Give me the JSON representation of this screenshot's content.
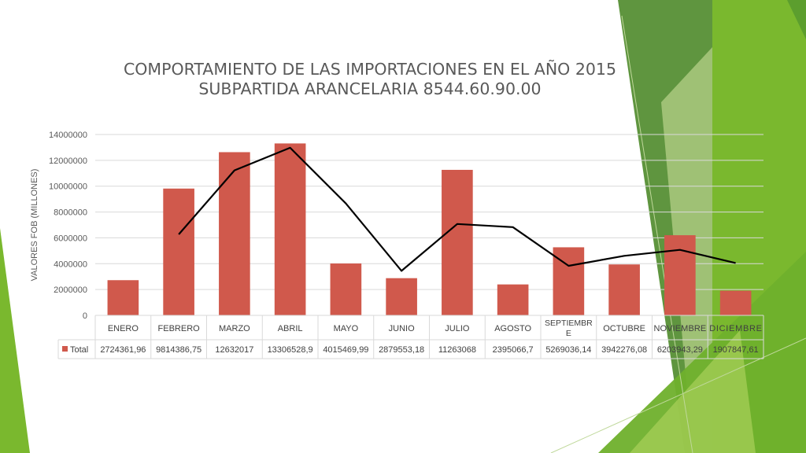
{
  "theme": {
    "bar_color": "#D0594C",
    "line_color": "#000000",
    "accent_green_dark": "#4E8A2A",
    "accent_green": "#7AB82E",
    "accent_green_light": "#C9E09A"
  },
  "chart_data": {
    "type": "bar",
    "title_lines": [
      "COMPORTAMIENTO DE LAS IMPORTACIONES EN EL AÑO 2015",
      "SUBPARTIDA ARANCELARIA 8544.60.90.00"
    ],
    "ylabel": "VALORES FOB (MILLONES)",
    "xlabel": "",
    "ylim": [
      0,
      14000000
    ],
    "yticks": [
      "0",
      "2000000",
      "4000000",
      "6000000",
      "8000000",
      "10000000",
      "12000000",
      "14000000"
    ],
    "grid": true,
    "categories": [
      "ENERO",
      "FEBRERO",
      "MARZO",
      "ABRIL",
      "MAYO",
      "JUNIO",
      "JULIO",
      "AGOSTO",
      "SEPTIEMBRE",
      "OCTUBRE",
      "NOVIEMBRE",
      "DICIEMBRE"
    ],
    "series": [
      {
        "name": "Total",
        "values": [
          2724361.96,
          9814386.75,
          12632017,
          13306528.9,
          4015469.99,
          2879553.18,
          11263068,
          2395066.7,
          5269036.14,
          3942276.08,
          6203943.29,
          1907847.61
        ],
        "labels": [
          "2724361,96",
          "9814386,75",
          "12632017",
          "13306528,9",
          "4015469,99",
          "2879553,18",
          "11263068",
          "2395066,7",
          "5269036,14",
          "3942276,08",
          "6203943,29",
          "1907847,61"
        ]
      }
    ],
    "trendline": {
      "type": "moving-average",
      "period": 2,
      "values": [
        6269374.36,
        11223201.88,
        12969272.95,
        8661000,
        3447511.59,
        7071311,
        6829067,
        3832051,
        4605656,
        5073110,
        4055895
      ]
    },
    "data_table": true
  }
}
